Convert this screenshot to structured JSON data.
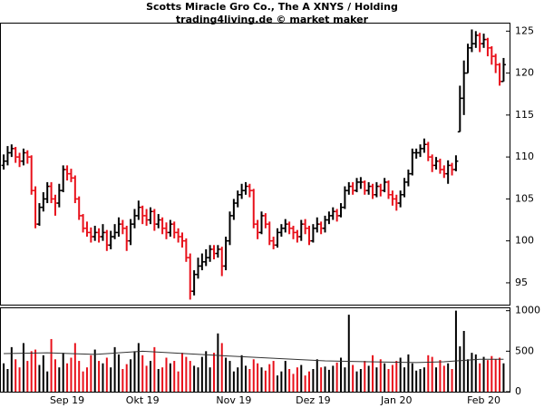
{
  "chart_data": {
    "type": "ohlc",
    "title": "Scotts Miracle Gro Co., The A XNYS / Holding",
    "subtitle": "trading4living.de © market maker",
    "up_color": "#000000",
    "down_color": "#e8101a",
    "ylim": [
      92.4,
      125.9
    ],
    "yticks": [
      95,
      100,
      105,
      110,
      115,
      120,
      125
    ],
    "xlim": [
      -0.7,
      127.5
    ],
    "xticks": [
      {
        "value": 16,
        "label": "Sep 19"
      },
      {
        "value": 35,
        "label": "Okt 19"
      },
      {
        "value": 58,
        "label": "Nov 19"
      },
      {
        "value": 78,
        "label": "Dez 19"
      },
      {
        "value": 99,
        "label": "Jan 20"
      },
      {
        "value": 121,
        "label": "Feb 20"
      }
    ],
    "ohlc": [
      [
        109,
        110.3,
        108.5,
        109.5
      ],
      [
        109.5,
        111.3,
        109,
        110.5
      ],
      [
        110.5,
        111.5,
        110,
        111
      ],
      [
        111,
        111.2,
        109.3,
        110
      ],
      [
        110,
        110.5,
        108.8,
        109.5
      ],
      [
        109.5,
        111,
        109,
        110.5
      ],
      [
        110.5,
        110.8,
        109.2,
        110
      ],
      [
        110,
        110.2,
        105.5,
        106
      ],
      [
        106,
        106.5,
        101.5,
        102
      ],
      [
        102,
        104.5,
        101.8,
        104
      ],
      [
        104,
        105.8,
        103.5,
        105
      ],
      [
        105,
        107,
        104.5,
        106.5
      ],
      [
        106.5,
        107,
        104.5,
        105
      ],
      [
        105,
        105.5,
        103,
        104.5
      ],
      [
        104.5,
        106.8,
        104,
        106
      ],
      [
        106,
        109,
        105.8,
        108.5
      ],
      [
        108.5,
        109,
        107.2,
        108
      ],
      [
        108,
        108.6,
        107,
        107.5
      ],
      [
        107.5,
        107.8,
        104.5,
        105
      ],
      [
        105,
        105.3,
        102.5,
        103
      ],
      [
        103,
        103.2,
        101,
        101.5
      ],
      [
        101.5,
        102.3,
        100.5,
        101
      ],
      [
        101,
        101.6,
        99.8,
        100.5
      ],
      [
        100.5,
        101.8,
        100,
        101
      ],
      [
        101,
        101.5,
        99.8,
        100.5
      ],
      [
        100.5,
        102,
        100,
        101
      ],
      [
        101,
        101.3,
        98.8,
        99.5
      ],
      [
        99.5,
        101.2,
        99,
        100.5
      ],
      [
        100.5,
        102,
        100.2,
        101
      ],
      [
        101,
        102.8,
        100.5,
        102
      ],
      [
        102,
        102.5,
        100.8,
        101.5
      ],
      [
        101.5,
        101.8,
        98.8,
        100
      ],
      [
        100,
        102.6,
        99.5,
        102
      ],
      [
        102,
        103.8,
        101.5,
        103
      ],
      [
        103,
        104.8,
        102.5,
        104
      ],
      [
        104,
        104.2,
        102,
        103
      ],
      [
        103,
        103.8,
        101.8,
        102.5
      ],
      [
        102.5,
        104,
        102,
        103.5
      ],
      [
        103.5,
        103.8,
        101.2,
        102
      ],
      [
        102,
        103.2,
        101.5,
        102.5
      ],
      [
        102.5,
        102.8,
        100.8,
        101.5
      ],
      [
        101.5,
        102.2,
        100.2,
        101
      ],
      [
        101,
        102.5,
        100.5,
        102
      ],
      [
        102,
        102.3,
        100.3,
        101
      ],
      [
        101,
        101.5,
        99.8,
        100.5
      ],
      [
        100.5,
        101,
        99.2,
        100
      ],
      [
        100,
        100.3,
        97.5,
        98
      ],
      [
        98,
        98.5,
        93,
        94
      ],
      [
        94,
        96.5,
        93.5,
        96
      ],
      [
        96,
        98,
        95.5,
        97
      ],
      [
        97,
        98.5,
        96.5,
        97.5
      ],
      [
        97.5,
        99,
        97,
        98
      ],
      [
        98,
        99.5,
        97.5,
        99
      ],
      [
        99,
        99.5,
        97.8,
        98.5
      ],
      [
        98.5,
        99.5,
        98,
        99
      ],
      [
        99,
        99.3,
        95.8,
        97
      ],
      [
        97,
        100.5,
        96.5,
        100
      ],
      [
        100,
        103.5,
        99.5,
        103
      ],
      [
        103,
        105,
        102.5,
        104.5
      ],
      [
        104.5,
        106,
        104,
        105.5
      ],
      [
        105.5,
        106.8,
        105,
        106
      ],
      [
        106,
        107,
        105.5,
        106.5
      ],
      [
        106.5,
        106.8,
        105.2,
        106
      ],
      [
        106,
        106.2,
        101.5,
        102
      ],
      [
        102,
        102.5,
        100.2,
        101
      ],
      [
        101,
        103.5,
        100.8,
        103
      ],
      [
        103,
        103.3,
        101.5,
        102
      ],
      [
        102,
        102.3,
        99.5,
        100
      ],
      [
        100,
        100.5,
        99,
        99.5
      ],
      [
        99.5,
        101.5,
        99.2,
        101
      ],
      [
        101,
        102,
        100.5,
        101.5
      ],
      [
        101.5,
        102.6,
        101,
        102
      ],
      [
        102,
        102.3,
        100.8,
        101.5
      ],
      [
        101.5,
        101.8,
        100.2,
        101
      ],
      [
        101,
        101.3,
        99.8,
        100.5
      ],
      [
        100.5,
        102.5,
        100,
        102
      ],
      [
        102,
        102.6,
        100.8,
        101.5
      ],
      [
        101.5,
        101.8,
        99.5,
        100
      ],
      [
        100,
        102,
        99.8,
        101.5
      ],
      [
        101.5,
        102.8,
        101,
        102
      ],
      [
        102,
        102.3,
        100.8,
        101.5
      ],
      [
        101.5,
        103,
        101,
        102.5
      ],
      [
        102.5,
        103.5,
        102,
        103
      ],
      [
        103,
        104,
        102.5,
        103.5
      ],
      [
        103.5,
        103.8,
        102.3,
        103
      ],
      [
        103,
        104.5,
        102.8,
        104
      ],
      [
        104,
        106.5,
        103.8,
        106
      ],
      [
        106,
        107,
        105.5,
        106.5
      ],
      [
        106.5,
        107,
        105.5,
        106
      ],
      [
        106,
        107.5,
        105.8,
        107
      ],
      [
        107,
        107.6,
        106.2,
        107
      ],
      [
        107,
        107.2,
        105.5,
        106
      ],
      [
        106,
        107,
        105.5,
        106.5
      ],
      [
        106.5,
        106.8,
        105,
        105.5
      ],
      [
        105.5,
        107,
        105.2,
        106.5
      ],
      [
        106.5,
        106.8,
        105.3,
        106
      ],
      [
        106,
        107.5,
        105.8,
        107
      ],
      [
        107,
        107.2,
        105,
        105.5
      ],
      [
        105.5,
        106,
        104.2,
        105
      ],
      [
        105,
        105.5,
        103.6,
        104.5
      ],
      [
        104.5,
        106,
        104,
        105.5
      ],
      [
        105.5,
        107.5,
        105.2,
        107
      ],
      [
        107,
        108.5,
        106.5,
        108
      ],
      [
        108,
        111,
        107.8,
        110.5
      ],
      [
        110.5,
        111,
        109.8,
        110.5
      ],
      [
        110.5,
        111.5,
        110,
        111
      ],
      [
        111,
        112.2,
        110.5,
        111.5
      ],
      [
        111.5,
        111.8,
        109.5,
        110
      ],
      [
        110,
        110.3,
        108.2,
        109
      ],
      [
        109,
        110,
        108.5,
        109.5
      ],
      [
        109.5,
        109.8,
        108,
        108.5
      ],
      [
        108.5,
        109,
        107.5,
        108
      ],
      [
        108,
        109.6,
        106.8,
        109
      ],
      [
        109,
        109.3,
        107.8,
        108.5
      ],
      [
        108.5,
        110.2,
        108.3,
        109.5
      ],
      [
        113,
        118.5,
        113,
        117
      ],
      [
        117,
        121.5,
        115,
        120
      ],
      [
        120,
        123.5,
        120,
        123
      ],
      [
        123,
        125.2,
        122.5,
        123.5
      ],
      [
        123.5,
        125,
        123,
        124.5
      ],
      [
        124.5,
        124.8,
        122.5,
        123.5
      ],
      [
        123.5,
        124.7,
        123,
        124
      ],
      [
        124,
        124.2,
        122,
        123
      ],
      [
        123,
        123.2,
        121,
        122
      ],
      [
        122,
        122.3,
        120,
        121
      ],
      [
        121,
        121.2,
        118.5,
        119
      ],
      [
        119,
        121.8,
        119,
        121
      ]
    ],
    "volume_ylim": [
      0,
      1030
    ],
    "volume_yticks": [
      0,
      500,
      1000
    ],
    "volume": [
      350,
      280,
      550,
      400,
      300,
      600,
      380,
      500,
      520,
      330,
      450,
      250,
      650,
      400,
      300,
      480,
      350,
      420,
      600,
      380,
      250,
      300,
      450,
      520,
      380,
      350,
      420,
      300,
      550,
      460,
      280,
      340,
      400,
      500,
      600,
      450,
      320,
      380,
      550,
      280,
      300,
      420,
      350,
      380,
      250,
      480,
      430,
      380,
      320,
      300,
      430,
      500,
      300,
      480,
      720,
      600,
      420,
      380,
      250,
      300,
      450,
      320,
      280,
      400,
      350,
      300,
      260,
      340,
      380,
      200,
      250,
      380,
      280,
      220,
      300,
      330,
      200,
      250,
      280,
      400,
      300,
      310,
      270,
      320,
      360,
      420,
      300,
      950,
      330,
      250,
      280,
      380,
      320,
      450,
      300,
      400,
      350,
      280,
      330,
      380,
      420,
      300,
      460,
      350,
      260,
      280,
      300,
      450,
      430,
      300,
      390,
      320,
      350,
      280,
      1000,
      560,
      750,
      400,
      480,
      460,
      350,
      430,
      390,
      440,
      400,
      420,
      350
    ],
    "volume_average": {
      "x": [
        0,
        11,
        23,
        35,
        57,
        69,
        81,
        92,
        104,
        111,
        120,
        126
      ],
      "values": [
        470,
        480,
        460,
        500,
        440,
        410,
        380,
        370,
        360,
        370,
        400,
        400
      ],
      "color": "#333333"
    }
  }
}
